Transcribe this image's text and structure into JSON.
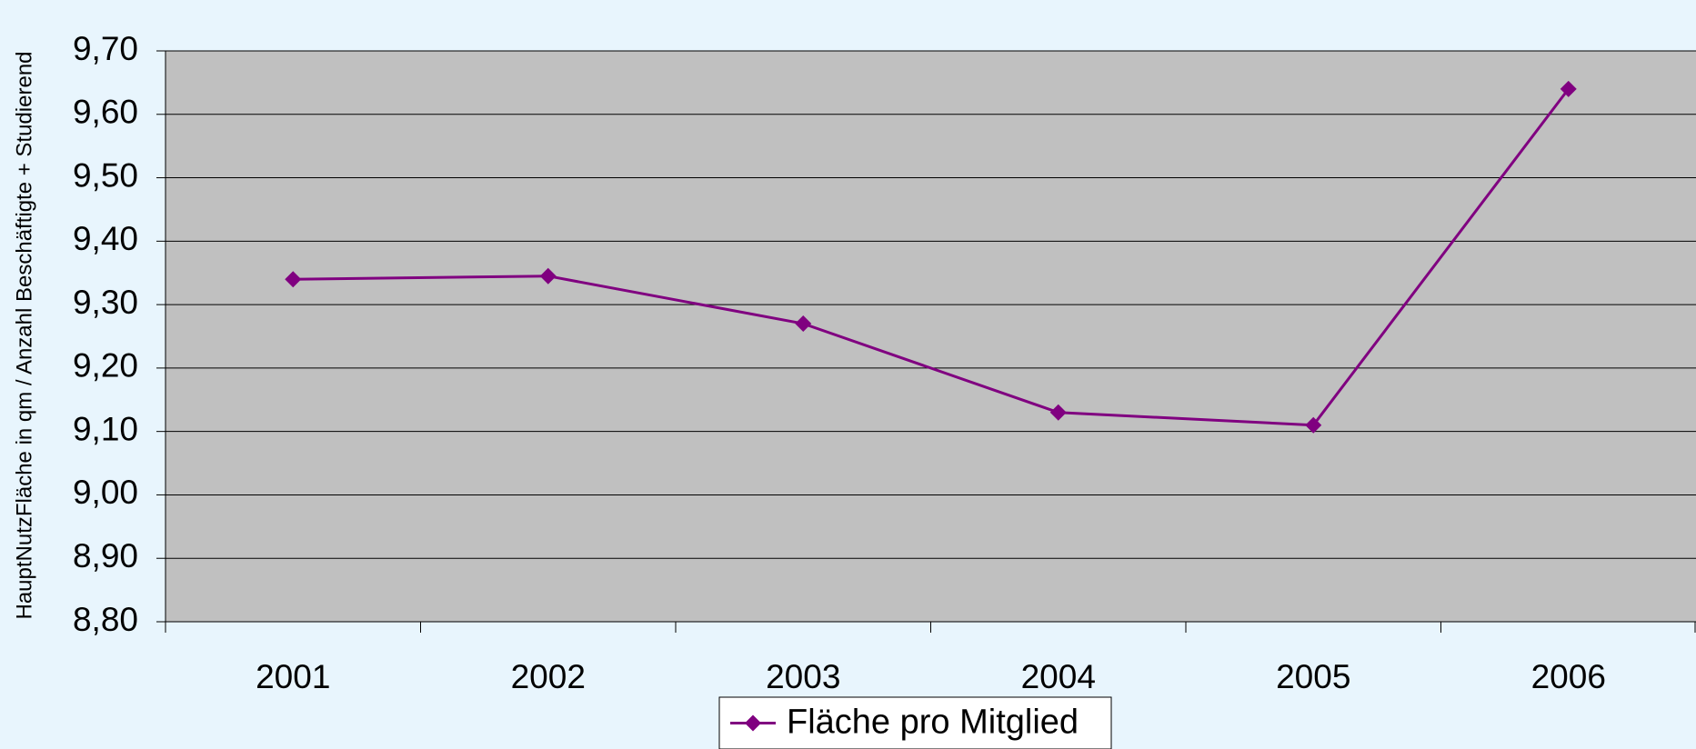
{
  "chart_data": {
    "type": "line",
    "y_axis_label": "HauptNutzFläche in qm / Anzahl Beschäftigte + Studierend",
    "categories": [
      "2001",
      "2002",
      "2003",
      "2004",
      "2005",
      "2006"
    ],
    "series": [
      {
        "name": "Fläche pro Mitglied",
        "color": "#800080",
        "values": [
          9.34,
          9.345,
          9.27,
          9.13,
          9.11,
          9.64
        ]
      }
    ],
    "ylim": [
      8.8,
      9.7
    ],
    "yticks": [
      {
        "value": 8.8,
        "label": "8,80"
      },
      {
        "value": 8.9,
        "label": "8,90"
      },
      {
        "value": 9.0,
        "label": "9,00"
      },
      {
        "value": 9.1,
        "label": "9,10"
      },
      {
        "value": 9.2,
        "label": "9,20"
      },
      {
        "value": 9.3,
        "label": "9,30"
      },
      {
        "value": 9.4,
        "label": "9,40"
      },
      {
        "value": 9.5,
        "label": "9,50"
      },
      {
        "value": 9.6,
        "label": "9,60"
      },
      {
        "value": 9.7,
        "label": "9,70"
      }
    ],
    "grid": true,
    "plot_background": "#c0c0c0",
    "legend": "bottom"
  }
}
